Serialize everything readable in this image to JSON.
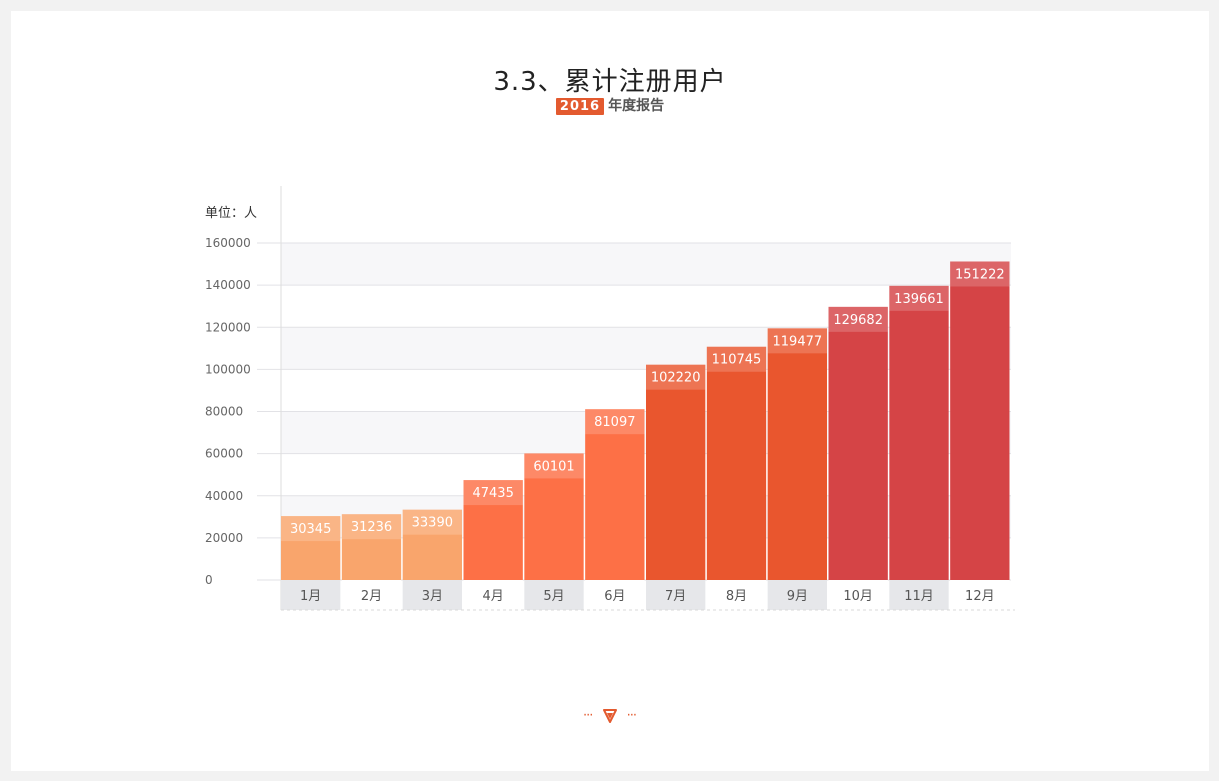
{
  "header": {
    "title": "3.3、累计注册用户",
    "year_badge": "2016",
    "report_label": "年度报告"
  },
  "colors": {
    "background": "#f2f2f2",
    "card": "#ffffff",
    "accent": "#e35a2f",
    "tier_light": "#f9a56c",
    "tier_mid": "#fd7046",
    "tier_dark": "#e9562e",
    "tier_red": "#d54446"
  },
  "chart_data": {
    "type": "bar",
    "unit_label": "单位：人",
    "categories": [
      "1月",
      "2月",
      "3月",
      "4月",
      "5月",
      "6月",
      "7月",
      "8月",
      "9月",
      "10月",
      "11月",
      "12月"
    ],
    "values": [
      30345,
      31236,
      33390,
      47435,
      60101,
      81097,
      102220,
      110745,
      119477,
      129682,
      139661,
      151222
    ],
    "ylim": [
      0,
      160000
    ],
    "yticks": [
      "0",
      "20000",
      "40000",
      "60000",
      "80000",
      "100000",
      "120000",
      "140000",
      "160000"
    ],
    "bar_colors": [
      "#f9a56c",
      "#f9a56c",
      "#f9a56c",
      "#fd7046",
      "#fd7046",
      "#fd7046",
      "#e9562e",
      "#e9562e",
      "#e9562e",
      "#d54446",
      "#d54446",
      "#d54446"
    ],
    "grid": true,
    "legend": "none"
  },
  "footer": {
    "scroll_hint_icon": "chevron-down-icon"
  }
}
